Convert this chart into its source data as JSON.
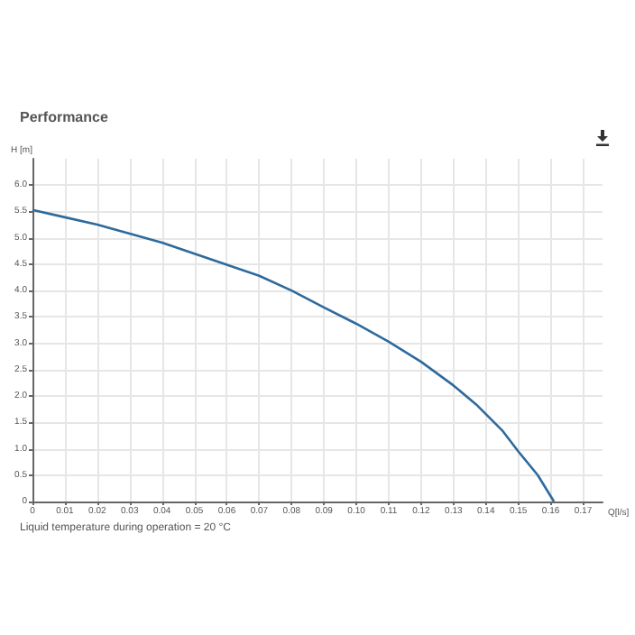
{
  "chart_data": {
    "type": "line",
    "title": "Performance",
    "xlabel": "Q[l/s]",
    "ylabel": "H [m]",
    "annotations": [
      "Liquid temperature during operation = 20 °C"
    ],
    "series": [
      {
        "color": "#2e6a9c",
        "x": [
          0,
          0.01,
          0.02,
          0.03,
          0.04,
          0.05,
          0.06,
          0.07,
          0.08,
          0.09,
          0.1,
          0.11,
          0.12,
          0.13,
          0.137,
          0.145,
          0.15,
          0.156,
          0.161
        ],
        "values": [
          5.53,
          5.39,
          5.25,
          5.08,
          4.91,
          4.7,
          4.49,
          4.28,
          4.0,
          3.68,
          3.37,
          3.03,
          2.65,
          2.2,
          1.84,
          1.35,
          0.95,
          0.5,
          0
        ]
      }
    ],
    "xlim": [
      0,
      0.176
    ],
    "xticks": [
      0,
      0.01,
      0.02,
      0.03,
      0.04,
      0.05,
      0.06,
      0.07,
      0.08,
      0.09,
      {
        "value": 0.1,
        "label": "0.10"
      },
      0.11,
      0.12,
      0.13,
      0.14,
      0.15,
      0.16,
      0.17
    ],
    "ylim": [
      0,
      6.5
    ],
    "yticks": [
      0,
      0.5,
      {
        "value": 1,
        "label": "1.0"
      },
      1.5,
      {
        "value": 2,
        "label": "2.0"
      },
      2.5,
      {
        "value": 3,
        "label": "3.0"
      },
      3.5,
      {
        "value": 4,
        "label": "4.0"
      },
      4.5,
      {
        "value": 5,
        "label": "5.0"
      },
      5.5,
      {
        "value": 6,
        "label": "6.0"
      }
    ],
    "grid": true,
    "marker": "none",
    "line_style": "solid"
  }
}
